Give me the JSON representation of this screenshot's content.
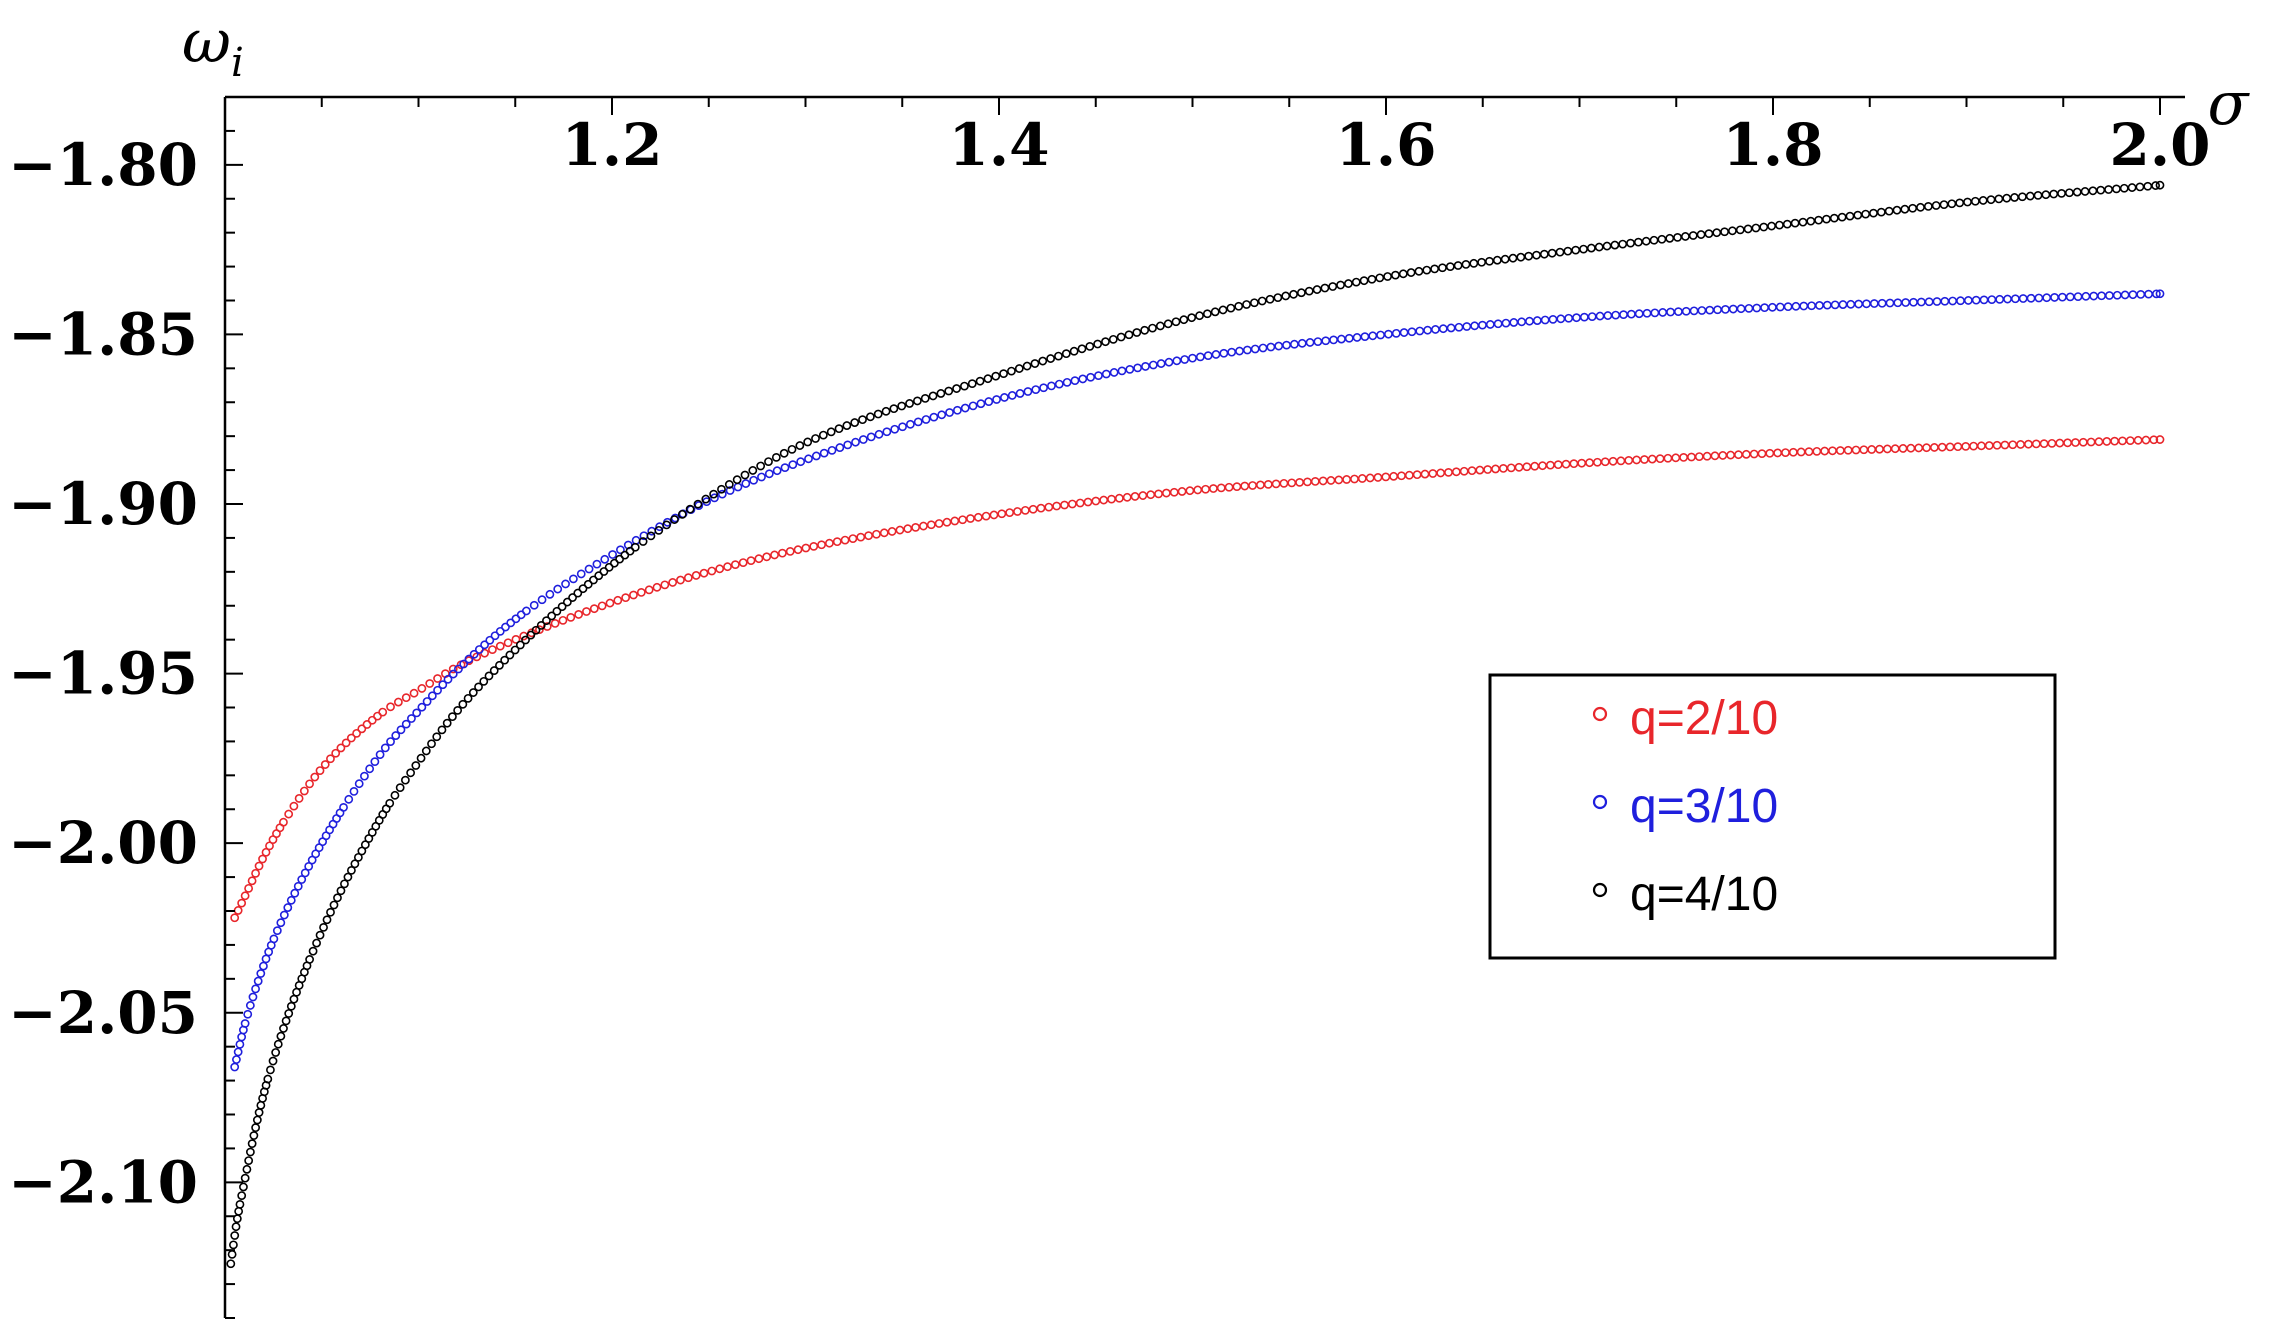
{
  "chart_data": {
    "type": "scatter",
    "xlabel": "σ",
    "ylabel": "ω_i",
    "ylabel_main": "ω",
    "ylabel_sub": "i",
    "xlim": [
      1.0,
      2.0
    ],
    "ylim": [
      -2.14,
      -1.78
    ],
    "xticks": [
      1.2,
      1.4,
      1.6,
      1.8,
      2.0
    ],
    "xtick_labels": [
      "1.2",
      "1.4",
      "1.6",
      "1.8",
      "2.0"
    ],
    "yticks": [
      -1.8,
      -1.85,
      -1.9,
      -1.95,
      -2.0,
      -2.05,
      -2.1
    ],
    "ytick_labels": [
      "−1.80",
      "−1.85",
      "−1.90",
      "−1.95",
      "−2.00",
      "−2.05",
      "−2.10"
    ],
    "x_axis_position": "top",
    "grid": false,
    "legend_position": "right",
    "marker": "open-circle",
    "series": [
      {
        "name": "q=2/10",
        "color": "#e8262b",
        "x": [
          1.005,
          1.01,
          1.02,
          1.03,
          1.05,
          1.08,
          1.1,
          1.12,
          1.15,
          1.2,
          1.25,
          1.3,
          1.4,
          1.5,
          1.6,
          1.7,
          1.8,
          1.9,
          2.0
        ],
        "y": [
          -2.022,
          -2.016,
          -2.004,
          -1.994,
          -1.978,
          -1.962,
          -1.955,
          -1.948,
          -1.94,
          -1.929,
          -1.92,
          -1.913,
          -1.903,
          -1.896,
          -1.892,
          -1.888,
          -1.885,
          -1.883,
          -1.881
        ]
      },
      {
        "name": "q=3/10",
        "color": "#1f1fdd",
        "x": [
          1.005,
          1.01,
          1.02,
          1.03,
          1.05,
          1.08,
          1.1,
          1.12,
          1.15,
          1.2,
          1.25,
          1.3,
          1.4,
          1.5,
          1.6,
          1.7,
          1.8,
          1.9,
          2.0
        ],
        "y": [
          -2.066,
          -2.054,
          -2.036,
          -2.022,
          -2.0,
          -1.974,
          -1.961,
          -1.949,
          -1.934,
          -1.915,
          -1.899,
          -1.887,
          -1.869,
          -1.857,
          -1.85,
          -1.845,
          -1.842,
          -1.84,
          -1.838
        ]
      },
      {
        "name": "q=4/10",
        "color": "#000000",
        "x": [
          1.003,
          1.006,
          1.01,
          1.015,
          1.02,
          1.03,
          1.05,
          1.08,
          1.1,
          1.12,
          1.15,
          1.2,
          1.25,
          1.3,
          1.4,
          1.5,
          1.6,
          1.7,
          1.8,
          1.9,
          2.0
        ],
        "y": [
          -2.124,
          -2.112,
          -2.1,
          -2.086,
          -2.074,
          -2.055,
          -2.026,
          -1.993,
          -1.976,
          -1.961,
          -1.943,
          -1.918,
          -1.898,
          -1.882,
          -1.862,
          -1.845,
          -1.833,
          -1.825,
          -1.818,
          -1.811,
          -1.806
        ]
      }
    ]
  }
}
